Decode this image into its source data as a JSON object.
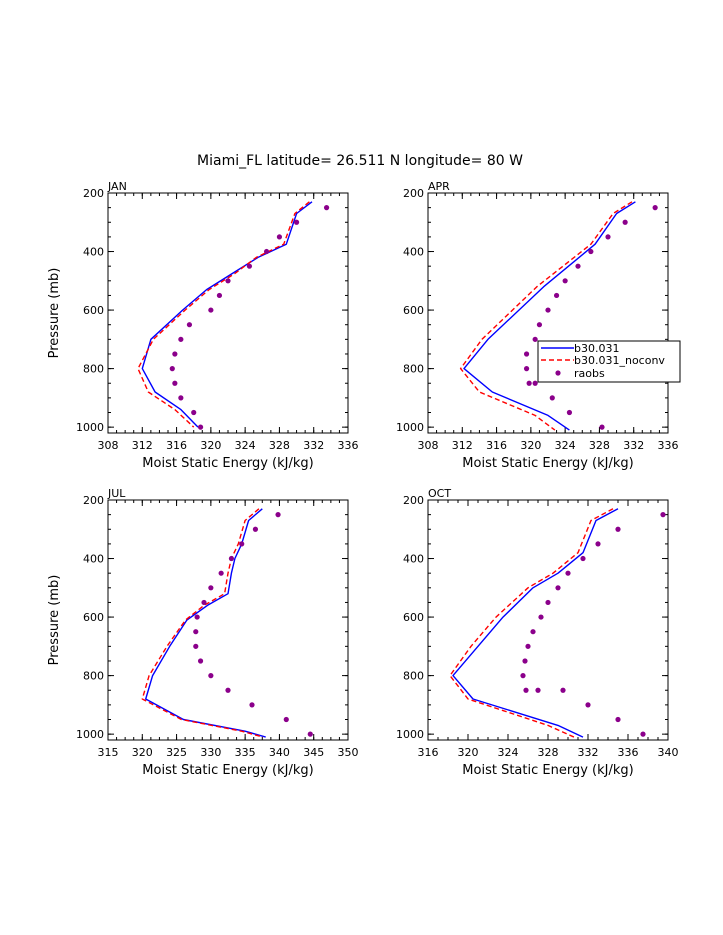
{
  "title": "Miami_FL  latitude= 26.511 N longitude= 80 W",
  "legend": {
    "entries": [
      "b30.031",
      "b30.031_noconv",
      "raobs"
    ]
  },
  "colors": {
    "b30.031": "#0000ff",
    "b30.031_noconv": "#ff0000",
    "raobs": "#8b008b"
  },
  "chart_data": [
    {
      "type": "line",
      "panel": "JAN",
      "xlabel": "Moist Static Energy (kJ/kg)",
      "ylabel": "Pressure (mb)",
      "xlim": [
        308,
        336
      ],
      "xticks": [
        308,
        312,
        316,
        320,
        324,
        328,
        332,
        336
      ],
      "ylim": [
        200,
        1020
      ],
      "yticks": [
        200,
        400,
        600,
        800,
        1000
      ],
      "series": [
        {
          "name": "b30.031",
          "style": "line",
          "x": [
            331.8,
            330,
            328.8,
            325.5,
            322.5,
            319.5,
            316.7,
            313,
            312,
            313.5,
            316.5,
            318.5
          ],
          "y": [
            230,
            270,
            375,
            420,
            475,
            530,
            600,
            700,
            800,
            880,
            940,
            1000
          ]
        },
        {
          "name": "b30.031_noconv",
          "style": "dashed",
          "x": [
            331.5,
            329.8,
            328.5,
            325.3,
            322.8,
            319.8,
            317,
            313.3,
            311.5,
            312.7,
            315.8,
            318
          ],
          "y": [
            230,
            270,
            375,
            420,
            475,
            530,
            600,
            700,
            800,
            880,
            940,
            1000
          ]
        },
        {
          "name": "raobs",
          "style": "dots",
          "x": [
            333.5,
            330,
            328,
            326.5,
            324.5,
            322,
            321,
            320,
            317.5,
            316.5,
            315.8,
            315.5,
            315.8,
            316.5,
            318,
            318.8
          ],
          "y": [
            250,
            300,
            350,
            400,
            450,
            500,
            550,
            600,
            650,
            700,
            750,
            800,
            850,
            900,
            950,
            1000
          ]
        }
      ]
    },
    {
      "type": "line",
      "panel": "APR",
      "xlabel": "Moist Static Energy (kJ/kg)",
      "ylabel": "",
      "xlim": [
        308,
        336
      ],
      "xticks": [
        308,
        312,
        316,
        320,
        324,
        328,
        332,
        336
      ],
      "ylim": [
        200,
        1020
      ],
      "yticks": [
        200,
        400,
        600,
        800,
        1000
      ],
      "series": [
        {
          "name": "b30.031",
          "style": "line",
          "x": [
            332.2,
            330,
            327.5,
            321.5,
            315,
            312.2,
            315.5,
            322,
            324.5
          ],
          "y": [
            230,
            270,
            375,
            520,
            700,
            800,
            880,
            960,
            1010
          ]
        },
        {
          "name": "b30.031_noconv",
          "style": "dashed",
          "x": [
            331.8,
            329.6,
            327,
            320.7,
            314.3,
            311.8,
            314,
            320.5,
            322.8
          ],
          "y": [
            230,
            270,
            375,
            520,
            700,
            800,
            880,
            960,
            1010
          ]
        },
        {
          "name": "raobs",
          "style": "dots",
          "x": [
            334.5,
            331,
            329,
            327,
            325.5,
            324,
            323,
            322,
            321,
            320.5,
            319.5,
            319.5,
            319.8,
            320.5,
            322.5,
            324.5,
            328.3
          ],
          "y": [
            250,
            300,
            350,
            400,
            450,
            500,
            550,
            600,
            650,
            700,
            750,
            800,
            850,
            850,
            900,
            950,
            1000
          ]
        }
      ]
    },
    {
      "type": "line",
      "panel": "JUL",
      "xlabel": "Moist Static Energy (kJ/kg)",
      "ylabel": "Pressure (mb)",
      "xlim": [
        315,
        350
      ],
      "xticks": [
        315,
        320,
        325,
        330,
        335,
        340,
        345,
        350
      ],
      "ylim": [
        200,
        1020
      ],
      "yticks": [
        200,
        400,
        600,
        800,
        1000
      ],
      "series": [
        {
          "name": "b30.031",
          "style": "line",
          "x": [
            337.5,
            335.5,
            334.5,
            333.5,
            333,
            332.5,
            329.5,
            326.5,
            324,
            321.5,
            320.5,
            326,
            335,
            338
          ],
          "y": [
            230,
            270,
            350,
            400,
            450,
            520,
            560,
            610,
            700,
            800,
            880,
            950,
            990,
            1010
          ]
        },
        {
          "name": "b30.031_noconv",
          "style": "dashed",
          "x": [
            337,
            335,
            334,
            333,
            332.5,
            332,
            329,
            326.3,
            323.6,
            321,
            320,
            325.7,
            334.5,
            337.6
          ],
          "y": [
            230,
            270,
            350,
            400,
            450,
            520,
            560,
            610,
            700,
            800,
            880,
            950,
            990,
            1010
          ]
        },
        {
          "name": "raobs",
          "style": "dots",
          "x": [
            339.8,
            336.5,
            334.5,
            333,
            331.5,
            330,
            329,
            328,
            327.8,
            327.8,
            328.5,
            330,
            332.5,
            336,
            341,
            344.5
          ],
          "y": [
            250,
            300,
            350,
            400,
            450,
            500,
            550,
            600,
            650,
            700,
            750,
            800,
            850,
            900,
            950,
            1000
          ]
        }
      ]
    },
    {
      "type": "line",
      "panel": "OCT",
      "xlabel": "Moist Static Energy (kJ/kg)",
      "ylabel": "",
      "xlim": [
        316,
        340
      ],
      "xticks": [
        316,
        320,
        324,
        328,
        332,
        336,
        340
      ],
      "ylim": [
        200,
        1020
      ],
      "yticks": [
        200,
        400,
        600,
        800,
        1000
      ],
      "series": [
        {
          "name": "b30.031",
          "style": "line",
          "x": [
            335,
            332.8,
            331.5,
            329,
            326.5,
            323.5,
            321,
            318.5,
            320.5,
            329,
            331.5
          ],
          "y": [
            230,
            270,
            380,
            450,
            500,
            600,
            700,
            800,
            880,
            970,
            1010
          ]
        },
        {
          "name": "b30.031_noconv",
          "style": "dashed",
          "x": [
            334.5,
            332.3,
            331,
            328.5,
            326,
            322.8,
            320.3,
            318.2,
            320,
            328,
            330.6
          ],
          "y": [
            230,
            270,
            380,
            450,
            500,
            600,
            700,
            800,
            880,
            970,
            1010
          ]
        },
        {
          "name": "raobs",
          "style": "dots",
          "x": [
            339.5,
            335,
            333,
            331.5,
            330,
            329,
            328,
            327.3,
            326.5,
            326,
            325.7,
            325.5,
            325.8,
            327,
            329.5,
            332,
            335,
            337.5
          ],
          "y": [
            250,
            300,
            350,
            400,
            450,
            500,
            550,
            600,
            650,
            700,
            750,
            800,
            850,
            850,
            850,
            900,
            950,
            1000
          ]
        }
      ]
    }
  ]
}
